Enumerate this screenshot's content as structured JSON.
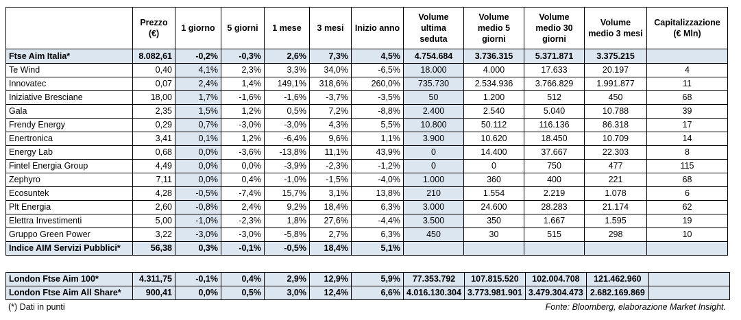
{
  "table": {
    "columns": [
      [
        "Prezzo",
        "(€)"
      ],
      [
        "1 giorno"
      ],
      [
        "5 giorni"
      ],
      [
        "1 mese"
      ],
      [
        "3 mesi"
      ],
      [
        "Inizio anno"
      ],
      [
        "Volume",
        "ultima",
        "seduta"
      ],
      [
        "Volume",
        "medio 5",
        "giorni"
      ],
      [
        "Volume",
        "medio 30",
        "giorni"
      ],
      [
        "Volume",
        "medio 3 mesi"
      ],
      [
        "Capitalizzazione",
        "(€ Mln)"
      ]
    ],
    "rows": [
      [
        "Ftse Aim Italia*",
        "8.082,61",
        "-0,2%",
        "-0,3%",
        "2,6%",
        "7,3%",
        "4,5%",
        "4.754.684",
        "3.736.315",
        "5.371.871",
        "3.375.215"
      ],
      [
        "Te Wind",
        "0,40",
        "4,1%",
        "2,3%",
        "3,3%",
        "34,0%",
        "-6,5%",
        "18.000",
        "4.000",
        "17.633",
        "20.197",
        "4"
      ],
      [
        "Innovatec",
        "0,07",
        "2,4%",
        "1,4%",
        "149,1%",
        "318,6%",
        "260,0%",
        "735.730",
        "2.534.936",
        "3.766.829",
        "1.991.877",
        "11"
      ],
      [
        "Iniziative Bresciane",
        "18,00",
        "1,7%",
        "-1,6%",
        "-1,6%",
        "-3,7%",
        "-3,5%",
        "50",
        "1.200",
        "512",
        "450",
        "68"
      ],
      [
        "Gala",
        "2,35",
        "1,5%",
        "1,2%",
        "0,5%",
        "7,2%",
        "-8,8%",
        "2.400",
        "2.540",
        "5.040",
        "10.788",
        "39"
      ],
      [
        "Frendy Energy",
        "0,29",
        "0,7%",
        "-3,0%",
        "-3,0%",
        "4,3%",
        "5,5%",
        "10.800",
        "50.112",
        "116.136",
        "86.318",
        "17"
      ],
      [
        "Enertronica",
        "3,41",
        "0,1%",
        "1,2%",
        "-6,4%",
        "9,6%",
        "1,1%",
        "3.900",
        "10.620",
        "18.450",
        "10.709",
        "14"
      ],
      [
        "Energy Lab",
        "0,68",
        "0,0%",
        "-3,6%",
        "-13,8%",
        "11,1%",
        "43,9%",
        "0",
        "14.400",
        "37.667",
        "22.303",
        "8"
      ],
      [
        "Fintel Energia Group",
        "4,49",
        "0,0%",
        "0,0%",
        "-3,9%",
        "-2,3%",
        "-1,2%",
        "0",
        "0",
        "750",
        "477",
        "115"
      ],
      [
        "Zephyro",
        "7,11",
        "0,0%",
        "0,4%",
        "-1,0%",
        "-1,5%",
        "-4,0%",
        "1.000",
        "360",
        "400",
        "221",
        "68"
      ],
      [
        "Ecosuntek",
        "4,28",
        "-0,5%",
        "-7,4%",
        "15,7%",
        "3,1%",
        "13,8%",
        "210",
        "1.554",
        "2.219",
        "1.078",
        "6"
      ],
      [
        "Plt Energia",
        "2,60",
        "-0,8%",
        "2,4%",
        "9,2%",
        "18,4%",
        "6,3%",
        "3.000",
        "24.600",
        "28.283",
        "21.174",
        "62"
      ],
      [
        "Elettra Investimenti",
        "5,00",
        "-1,0%",
        "-2,3%",
        "1,8%",
        "27,6%",
        "-4,4%",
        "3.500",
        "350",
        "1.667",
        "1.595",
        "19"
      ],
      [
        "Gruppo Green Power",
        "3,22",
        "-3,0%",
        "-3,0%",
        "-5,8%",
        "2,7%",
        "6,3%",
        "450",
        "30",
        "515",
        "298",
        "10"
      ],
      [
        "Indice AIM Servizi Pubblici*",
        "56,38",
        "0,3%",
        "-0,1%",
        "-0,5%",
        "18,4%",
        "5,1%"
      ]
    ]
  },
  "london_table": {
    "rows": [
      [
        "London Ftse Aim 100*",
        "4.311,75",
        "-0,1%",
        "0,4%",
        "2,9%",
        "12,9%",
        "5,9%",
        "77.353.792",
        "107.815.520",
        "102.004.708",
        "121.462.960"
      ],
      [
        "London Ftse Aim All Share*",
        "900,41",
        "0,0%",
        "0,5%",
        "3,0%",
        "12,4%",
        "6,6%",
        "4.016.130.304",
        "3.773.981.901",
        "3.479.304.473",
        "2.682.169.869"
      ]
    ]
  },
  "footer": {
    "note": "(*) Dati in punti",
    "source": "Fonte: Bloomberg, elaborazione Market Insight."
  }
}
